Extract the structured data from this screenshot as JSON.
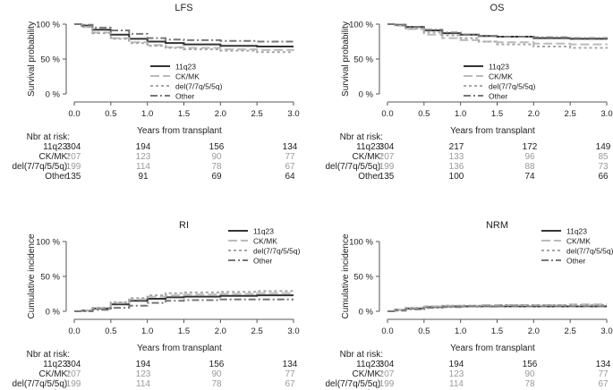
{
  "figure": {
    "x_title": "Years from transplant",
    "risk_header": "Nbr at risk:",
    "risk_labels": [
      "11q23:",
      "CK/MK:",
      "del(7/7q/5/5q):",
      "Other:"
    ],
    "legend_entries": [
      "11q23",
      "CK/MK",
      "del(7/7q/5/5q)",
      "Other"
    ],
    "series_colors": [
      "#333333",
      "#bbbbbb",
      "#a6a6a6",
      "#777777"
    ],
    "axis_color": "#555555"
  },
  "chart_data": [
    {
      "type": "line",
      "title": "LFS",
      "ylabel": "Survival probability",
      "xlabel": "Years from transplant",
      "xlim": [
        0,
        3
      ],
      "ylim": [
        0,
        100
      ],
      "x_ticks": [
        "0.0",
        "0.5",
        "1.0",
        "1.5",
        "2.0",
        "2.5",
        "3.0"
      ],
      "y_ticks": [
        "0 %",
        "50 %",
        "100 %"
      ],
      "legend": "lower-middle",
      "series": [
        {
          "name": "11q23",
          "x": [
            0,
            0.1,
            0.25,
            0.5,
            0.75,
            1.0,
            1.25,
            1.5,
            2.0,
            2.5,
            3.0
          ],
          "values": [
            100,
            98,
            92,
            85,
            79,
            75,
            73,
            71,
            69,
            68,
            68
          ]
        },
        {
          "name": "CK/MK",
          "x": [
            0,
            0.1,
            0.25,
            0.5,
            0.75,
            1.0,
            1.25,
            1.5,
            2.0,
            2.5,
            3.0
          ],
          "values": [
            100,
            96,
            88,
            80,
            74,
            70,
            67,
            66,
            64,
            63,
            62
          ]
        },
        {
          "name": "del(7/7q/5/5q)",
          "x": [
            0,
            0.1,
            0.25,
            0.5,
            0.75,
            1.0,
            1.25,
            1.5,
            2.0,
            2.5,
            3.0
          ],
          "values": [
            100,
            96,
            87,
            79,
            73,
            69,
            66,
            64,
            62,
            60,
            60
          ]
        },
        {
          "name": "Other",
          "x": [
            0,
            0.1,
            0.25,
            0.5,
            0.75,
            1.0,
            1.25,
            1.5,
            2.0,
            2.5,
            3.0
          ],
          "values": [
            100,
            99,
            95,
            91,
            86,
            80,
            78,
            77,
            76,
            75,
            75
          ]
        }
      ],
      "risk_table": [
        [
          "304",
          "194",
          "156",
          "134"
        ],
        [
          "207",
          "123",
          "90",
          "77"
        ],
        [
          "199",
          "114",
          "78",
          "67"
        ],
        [
          "135",
          "91",
          "69",
          "64"
        ]
      ]
    },
    {
      "type": "line",
      "title": "OS",
      "ylabel": "Survival probability",
      "xlabel": "Years from transplant",
      "xlim": [
        0,
        3
      ],
      "ylim": [
        0,
        100
      ],
      "x_ticks": [
        "0.0",
        "0.5",
        "1.0",
        "1.5",
        "2.0",
        "2.5",
        "3.0"
      ],
      "y_ticks": [
        "0 %",
        "50 %",
        "100 %"
      ],
      "legend": "lower-middle",
      "series": [
        {
          "name": "11q23",
          "x": [
            0,
            0.1,
            0.25,
            0.5,
            0.75,
            1.0,
            1.25,
            1.5,
            2.0,
            2.5,
            3.0
          ],
          "values": [
            100,
            99,
            96,
            91,
            87,
            85,
            83,
            82,
            80,
            79,
            78
          ]
        },
        {
          "name": "CK/MK",
          "x": [
            0,
            0.1,
            0.25,
            0.5,
            0.75,
            1.0,
            1.25,
            1.5,
            2.0,
            2.5,
            3.0
          ],
          "values": [
            100,
            98,
            93,
            85,
            80,
            77,
            75,
            74,
            72,
            71,
            70
          ]
        },
        {
          "name": "del(7/7q/5/5q)",
          "x": [
            0,
            0.1,
            0.25,
            0.5,
            0.75,
            1.0,
            1.25,
            1.5,
            2.0,
            2.5,
            3.0
          ],
          "values": [
            100,
            98,
            94,
            88,
            84,
            80,
            75,
            71,
            68,
            66,
            65
          ]
        },
        {
          "name": "Other",
          "x": [
            0,
            0.1,
            0.25,
            0.5,
            0.75,
            1.0,
            1.25,
            1.5,
            2.0,
            2.5,
            3.0
          ],
          "values": [
            100,
            99,
            96,
            92,
            88,
            85,
            83,
            82,
            81,
            80,
            79
          ]
        }
      ],
      "risk_table": [
        [
          "304",
          "217",
          "172",
          "149"
        ],
        [
          "207",
          "133",
          "96",
          "85"
        ],
        [
          "199",
          "136",
          "88",
          "73"
        ],
        [
          "135",
          "100",
          "74",
          "66"
        ]
      ]
    },
    {
      "type": "line",
      "title": "RI",
      "ylabel": "Cumulative incidence",
      "xlabel": "Years from transplant",
      "xlim": [
        0,
        3
      ],
      "ylim": [
        0,
        100
      ],
      "x_ticks": [
        "0.0",
        "0.5",
        "1.0",
        "1.5",
        "2.0",
        "2.5",
        "3.0"
      ],
      "y_ticks": [
        "0 %",
        "50 %",
        "100 %"
      ],
      "legend": "top-right",
      "series": [
        {
          "name": "11q23",
          "x": [
            0,
            0.1,
            0.25,
            0.5,
            0.75,
            1.0,
            1.25,
            1.5,
            2.0,
            2.5,
            3.0
          ],
          "values": [
            0,
            1,
            4,
            10,
            15,
            18,
            20,
            21,
            22,
            23,
            23
          ]
        },
        {
          "name": "CK/MK",
          "x": [
            0,
            0.1,
            0.25,
            0.5,
            0.75,
            1.0,
            1.25,
            1.5,
            2.0,
            2.5,
            3.0
          ],
          "values": [
            0,
            1,
            5,
            12,
            17,
            21,
            23,
            24,
            25,
            26,
            26
          ]
        },
        {
          "name": "del(7/7q/5/5q)",
          "x": [
            0,
            0.1,
            0.25,
            0.5,
            0.75,
            1.0,
            1.25,
            1.5,
            2.0,
            2.5,
            3.0
          ],
          "values": [
            0,
            1,
            5,
            13,
            19,
            23,
            26,
            27,
            28,
            29,
            29
          ]
        },
        {
          "name": "Other",
          "x": [
            0,
            0.1,
            0.25,
            0.5,
            0.75,
            1.0,
            1.25,
            1.5,
            2.0,
            2.5,
            3.0
          ],
          "values": [
            0,
            0,
            2,
            5,
            8,
            12,
            15,
            16,
            17,
            17,
            17
          ]
        }
      ],
      "risk_table": [
        [
          "304",
          "194",
          "156",
          "134"
        ],
        [
          "207",
          "123",
          "90",
          "77"
        ],
        [
          "199",
          "114",
          "78",
          "67"
        ],
        [
          "135",
          "91",
          "69",
          "64"
        ]
      ]
    },
    {
      "type": "line",
      "title": "NRM",
      "ylabel": "Cumulative incidence",
      "xlabel": "Years from transplant",
      "xlim": [
        0,
        3
      ],
      "ylim": [
        0,
        100
      ],
      "x_ticks": [
        "0.0",
        "0.5",
        "1.0",
        "1.5",
        "2.0",
        "2.5",
        "3.0"
      ],
      "y_ticks": [
        "0 %",
        "50 %",
        "100 %"
      ],
      "legend": "top-right",
      "series": [
        {
          "name": "11q23",
          "x": [
            0,
            0.1,
            0.25,
            0.5,
            0.75,
            1.0,
            1.25,
            1.5,
            2.0,
            2.5,
            3.0
          ],
          "values": [
            0,
            2,
            4,
            6,
            7,
            7,
            7,
            7,
            7,
            7,
            7
          ]
        },
        {
          "name": "CK/MK",
          "x": [
            0,
            0.1,
            0.25,
            0.5,
            0.75,
            1.0,
            1.25,
            1.5,
            2.0,
            2.5,
            3.0
          ],
          "values": [
            0,
            2,
            5,
            7,
            8,
            8,
            9,
            9,
            9,
            10,
            10
          ]
        },
        {
          "name": "del(7/7q/5/5q)",
          "x": [
            0,
            0.1,
            0.25,
            0.5,
            0.75,
            1.0,
            1.25,
            1.5,
            2.0,
            2.5,
            3.0
          ],
          "values": [
            0,
            2,
            5,
            7,
            8,
            8,
            8,
            9,
            9,
            9,
            9
          ]
        },
        {
          "name": "Other",
          "x": [
            0,
            0.1,
            0.25,
            0.5,
            0.75,
            1.0,
            1.25,
            1.5,
            2.0,
            2.5,
            3.0
          ],
          "values": [
            0,
            1,
            3,
            5,
            6,
            7,
            7,
            7,
            7,
            7,
            7
          ]
        }
      ],
      "risk_table": [
        [
          "304",
          "194",
          "156",
          "134"
        ],
        [
          "207",
          "123",
          "90",
          "77"
        ],
        [
          "199",
          "114",
          "78",
          "67"
        ],
        [
          "135",
          "91",
          "69",
          "64"
        ]
      ]
    }
  ]
}
